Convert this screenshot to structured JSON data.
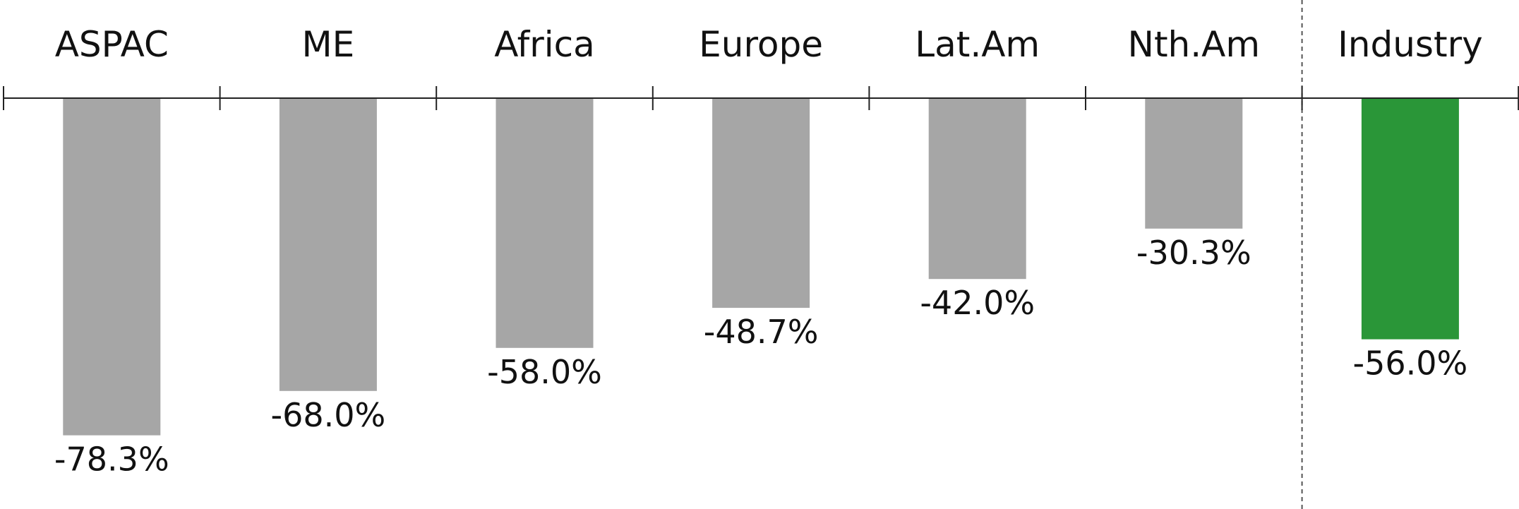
{
  "chart_data": {
    "type": "bar",
    "title": "",
    "xlabel": "",
    "ylabel": "",
    "categories": [
      "ASPAC",
      "ME",
      "Africa",
      "Europe",
      "Lat.Am",
      "Nth.Am",
      "Industry"
    ],
    "values": [
      -78.3,
      -68.0,
      -58.0,
      -48.7,
      -42.0,
      -30.3,
      -56.0
    ],
    "value_labels": [
      "-78.3%",
      "-68.0%",
      "-58.0%",
      "-48.7%",
      "-42.0%",
      "-30.3%",
      "-56.0%"
    ],
    "ylim": [
      -80,
      0
    ],
    "grid": false,
    "separator_before": "Industry",
    "colors": {
      "default_bar": "#a6a6a6",
      "highlight_bar": "#2a9638",
      "axis": "#222222",
      "separator": "#555555",
      "text": "#111111"
    },
    "highlight": [
      "Industry"
    ]
  }
}
